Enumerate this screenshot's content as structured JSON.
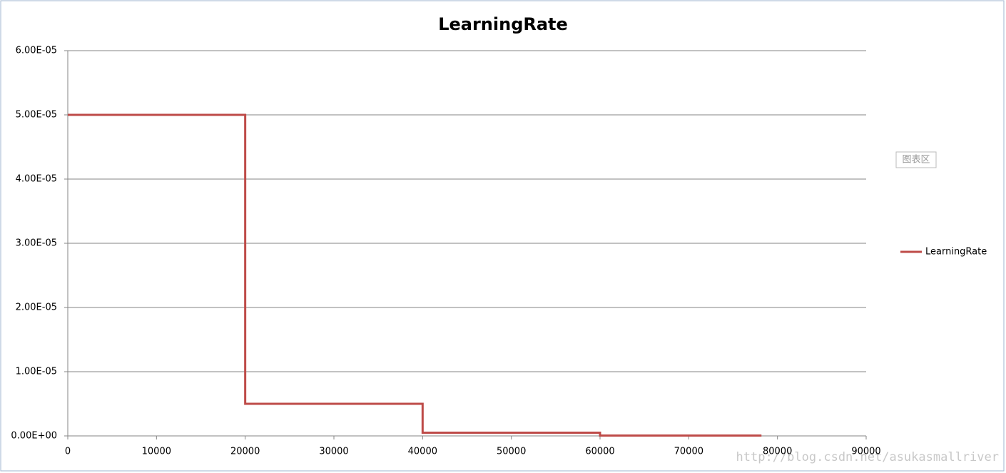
{
  "chart_data": {
    "type": "line",
    "title": "LearningRate",
    "x": [
      0,
      20000,
      20000,
      40000,
      40000,
      60000,
      60000,
      78200
    ],
    "series": [
      {
        "name": "LearningRate",
        "color": "#be4b48",
        "values": [
          5e-05,
          5e-05,
          5e-06,
          5e-06,
          5e-07,
          5e-07,
          5e-08,
          5e-08
        ]
      }
    ],
    "xlim": [
      0,
      90000
    ],
    "xticks": [
      0,
      10000,
      20000,
      30000,
      40000,
      50000,
      60000,
      70000,
      80000,
      90000
    ],
    "ylim": [
      0,
      6e-05
    ],
    "yticks": [
      {
        "value": 0,
        "label": "0.00E+00"
      },
      {
        "value": 1e-05,
        "label": "1.00E-05"
      },
      {
        "value": 2e-05,
        "label": "2.00E-05"
      },
      {
        "value": 3e-05,
        "label": "3.00E-05"
      },
      {
        "value": 4e-05,
        "label": "4.00E-05"
      },
      {
        "value": 5e-05,
        "label": "5.00E-05"
      },
      {
        "value": 6e-05,
        "label": "6.00E-05"
      }
    ],
    "grid": true,
    "legend": "right",
    "tooltip": "图表区",
    "watermark": "http://blog.csdn.net/asukasmallriver"
  }
}
